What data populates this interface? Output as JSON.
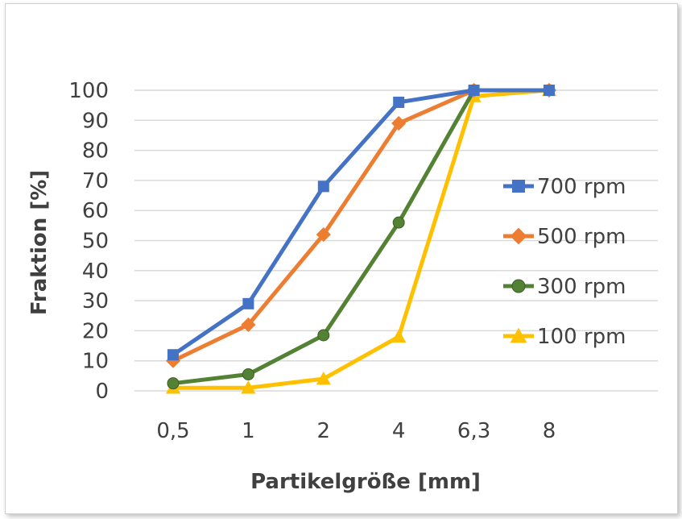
{
  "chart_data": {
    "type": "line",
    "title": "",
    "xlabel": "Partikelgröße [mm]",
    "ylabel": "Fraktion [%]",
    "categories": [
      "0,5",
      "1",
      "2",
      "4",
      "6,3",
      "8"
    ],
    "yticks": [
      "0",
      "10",
      "20",
      "30",
      "40",
      "50",
      "60",
      "70",
      "80",
      "90",
      "100"
    ],
    "ylim": [
      0,
      100
    ],
    "grid": "horizontal",
    "legend_position": "right",
    "series": [
      {
        "name": "700 rpm",
        "color": "#4472C4",
        "marker": "square",
        "values": [
          12,
          29,
          68,
          96,
          100,
          100
        ]
      },
      {
        "name": "500 rpm",
        "color": "#ED7D31",
        "marker": "diamond",
        "values": [
          10,
          22,
          52,
          89,
          100,
          100
        ]
      },
      {
        "name": "300 rpm",
        "color": "#548235",
        "marker": "circle",
        "values": [
          2.5,
          5.5,
          18.5,
          56,
          100,
          100
        ]
      },
      {
        "name": "100 rpm",
        "color": "#FFC000",
        "marker": "triangle",
        "values": [
          1,
          1,
          4,
          18,
          98,
          100
        ]
      }
    ]
  }
}
